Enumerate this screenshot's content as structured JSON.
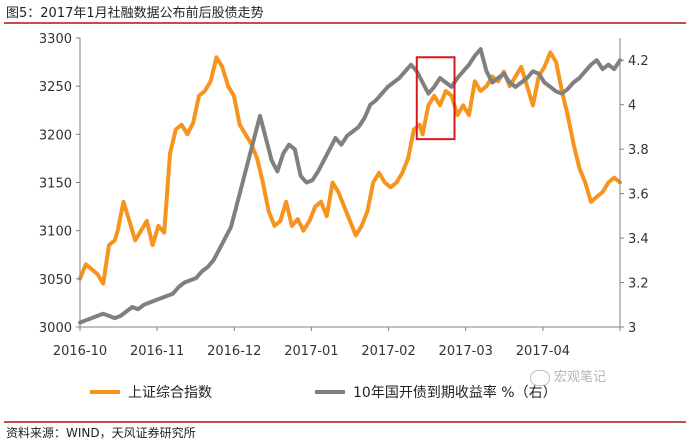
{
  "figure": {
    "title": "图5：2017年1月社融数据公布前后股债走势",
    "source": "资料来源：WIND，天风证券研究所",
    "watermark": "宏观笔记"
  },
  "colors": {
    "index_line": "#f7941d",
    "yield_line": "#808080",
    "highlight_box": "#d7191c",
    "axis": "#808080",
    "rule": "#c0504d"
  },
  "chart_data": {
    "type": "line",
    "grid": false,
    "legend_position": "bottom",
    "x_tick_labels": [
      "2016-10",
      "2016-11",
      "2016-12",
      "2017-01",
      "2017-02",
      "2017-03",
      "2017-04"
    ],
    "x_range": [
      0,
      186
    ],
    "left_axis": {
      "ylim": [
        3000,
        3300
      ],
      "ticks": [
        3000,
        3050,
        3100,
        3150,
        3200,
        3250,
        3300
      ]
    },
    "right_axis": {
      "ylim": [
        3.0,
        4.3
      ],
      "ticks": [
        "3",
        "3.2",
        "3.4",
        "3.6",
        "3.8",
        "4",
        "4.2"
      ]
    },
    "highlight_range": {
      "x": [
        116,
        129
      ],
      "left_y": [
        3195,
        3280
      ]
    },
    "series": [
      {
        "name": "上证综合指数",
        "axis": "left",
        "x": [
          0,
          2,
          4,
          6,
          8,
          10,
          12,
          13,
          15,
          17,
          19,
          21,
          23,
          25,
          27,
          29,
          31,
          33,
          35,
          37,
          39,
          41,
          43,
          45,
          47,
          49,
          51,
          53,
          55,
          57,
          59,
          61,
          63,
          65,
          67,
          69,
          71,
          73,
          75,
          77,
          79,
          81,
          83,
          85,
          87,
          89,
          91,
          93,
          95,
          97,
          99,
          101,
          103,
          105,
          107,
          109,
          111,
          113,
          115,
          117,
          118,
          120,
          122,
          124,
          126,
          128,
          130,
          132,
          134,
          136,
          138,
          140,
          142,
          144,
          146,
          148,
          150,
          152,
          154,
          156,
          158,
          160,
          162,
          164,
          166,
          168,
          170,
          172,
          174,
          176,
          178,
          180,
          182,
          184,
          186
        ],
        "y": [
          3050,
          3065,
          3060,
          3055,
          3045,
          3085,
          3090,
          3100,
          3130,
          3110,
          3090,
          3100,
          3110,
          3085,
          3105,
          3098,
          3180,
          3205,
          3210,
          3200,
          3212,
          3240,
          3245,
          3255,
          3280,
          3270,
          3250,
          3240,
          3210,
          3200,
          3190,
          3175,
          3150,
          3120,
          3105,
          3110,
          3130,
          3105,
          3112,
          3100,
          3110,
          3125,
          3130,
          3115,
          3150,
          3140,
          3125,
          3110,
          3095,
          3105,
          3120,
          3150,
          3160,
          3150,
          3145,
          3150,
          3160,
          3175,
          3205,
          3210,
          3200,
          3230,
          3240,
          3230,
          3245,
          3240,
          3220,
          3230,
          3220,
          3255,
          3245,
          3250,
          3260,
          3255,
          3265,
          3250,
          3260,
          3270,
          3250,
          3230,
          3260,
          3270,
          3285,
          3275,
          3245,
          3220,
          3190,
          3165,
          3150,
          3130,
          3135,
          3140,
          3150,
          3155,
          3150
        ]
      },
      {
        "name": "10年国开债到期收益率 %（右）",
        "axis": "right",
        "x": [
          0,
          2,
          4,
          6,
          8,
          10,
          12,
          14,
          16,
          18,
          20,
          22,
          24,
          26,
          28,
          30,
          32,
          34,
          36,
          38,
          40,
          42,
          44,
          46,
          48,
          50,
          52,
          54,
          56,
          58,
          60,
          62,
          64,
          66,
          68,
          70,
          72,
          74,
          76,
          78,
          80,
          82,
          84,
          86,
          88,
          90,
          92,
          94,
          96,
          98,
          100,
          102,
          104,
          106,
          108,
          110,
          112,
          114,
          116,
          118,
          120,
          122,
          124,
          126,
          128,
          130,
          132,
          134,
          136,
          138,
          140,
          142,
          144,
          146,
          148,
          150,
          152,
          154,
          156,
          158,
          160,
          162,
          164,
          166,
          168,
          170,
          172,
          174,
          176,
          178,
          180,
          182,
          184,
          186
        ],
        "y": [
          3.02,
          3.03,
          3.04,
          3.05,
          3.06,
          3.05,
          3.04,
          3.05,
          3.07,
          3.09,
          3.08,
          3.1,
          3.11,
          3.12,
          3.13,
          3.14,
          3.15,
          3.18,
          3.2,
          3.21,
          3.22,
          3.25,
          3.27,
          3.3,
          3.35,
          3.4,
          3.45,
          3.55,
          3.65,
          3.75,
          3.85,
          3.95,
          3.85,
          3.75,
          3.7,
          3.78,
          3.82,
          3.8,
          3.68,
          3.65,
          3.66,
          3.7,
          3.75,
          3.8,
          3.85,
          3.82,
          3.86,
          3.88,
          3.9,
          3.94,
          4.0,
          4.02,
          4.05,
          4.08,
          4.1,
          4.12,
          4.15,
          4.18,
          4.15,
          4.1,
          4.05,
          4.08,
          4.12,
          4.1,
          4.08,
          4.12,
          4.15,
          4.18,
          4.22,
          4.25,
          4.15,
          4.1,
          4.12,
          4.14,
          4.1,
          4.08,
          4.1,
          4.12,
          4.15,
          4.14,
          4.1,
          4.08,
          4.06,
          4.05,
          4.07,
          4.1,
          4.12,
          4.15,
          4.18,
          4.2,
          4.16,
          4.18,
          4.16,
          4.2
        ]
      }
    ]
  }
}
